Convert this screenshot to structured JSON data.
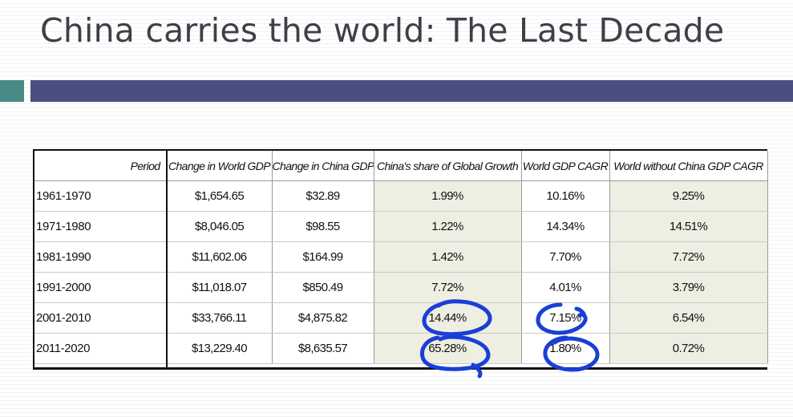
{
  "slide": {
    "title": "China carries the world: The Last Decade"
  },
  "table": {
    "headers": [
      "Period",
      "Change in World GDP",
      "Change in China GDP",
      "China's share of Global Growth",
      "World GDP CAGR",
      "World without China GDP CAGR"
    ],
    "rows": [
      [
        "1961-1970",
        "$1,654.65",
        "$32.89",
        "1.99%",
        "10.16%",
        "9.25%"
      ],
      [
        "1971-1980",
        "$8,046.05",
        "$98.55",
        "1.22%",
        "14.34%",
        "14.51%"
      ],
      [
        "1981-1990",
        "$11,602.06",
        "$164.99",
        "1.42%",
        "7.70%",
        "7.72%"
      ],
      [
        "1991-2000",
        "$11,018.07",
        "$850.49",
        "7.72%",
        "4.01%",
        "3.79%"
      ],
      [
        "2001-2010",
        "$33,766.11",
        "$4,875.82",
        "14.44%",
        "7.15%",
        "6.54%"
      ],
      [
        "2011-2020",
        "$13,229.40",
        "$8,635.57",
        "65.28%",
        "1.80%",
        "0.72%"
      ]
    ]
  },
  "colors": {
    "title": "#3f3f4a",
    "accent_teal": "#4a8a86",
    "accent_navy": "#4b4e80",
    "shaded_cells": "#eeeee3",
    "annotation_ink": "#1a3fd6"
  }
}
